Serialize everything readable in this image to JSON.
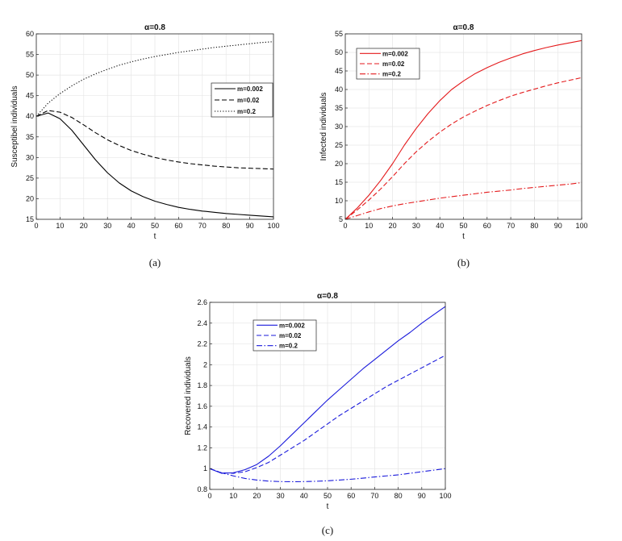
{
  "chart_data": [
    {
      "id": "a",
      "type": "line",
      "caption": "(a)",
      "title": "α=0.8",
      "xlabel": "t",
      "ylabel": "Susceptibel individuals",
      "xlim": [
        0,
        100
      ],
      "ylim": [
        15,
        60
      ],
      "xticks": [
        0,
        10,
        20,
        30,
        40,
        50,
        60,
        70,
        80,
        90,
        100
      ],
      "yticks": [
        15,
        20,
        25,
        30,
        35,
        40,
        45,
        50,
        55,
        60
      ],
      "grid": true,
      "legend_position": "center-right",
      "x": [
        0,
        5,
        10,
        15,
        20,
        25,
        30,
        35,
        40,
        45,
        50,
        55,
        60,
        65,
        70,
        75,
        80,
        85,
        90,
        95,
        100
      ],
      "series": [
        {
          "name": "m=0.002",
          "color": "#000000",
          "dash": "solid",
          "values": [
            40.0,
            40.8,
            39.4,
            36.6,
            33.0,
            29.4,
            26.3,
            23.8,
            21.9,
            20.5,
            19.4,
            18.6,
            17.9,
            17.4,
            17.0,
            16.7,
            16.4,
            16.2,
            16.0,
            15.8,
            15.6
          ]
        },
        {
          "name": "m=0.02",
          "color": "#000000",
          "dash": "dashed",
          "values": [
            40.0,
            41.4,
            41.0,
            39.7,
            37.9,
            36.0,
            34.3,
            32.9,
            31.7,
            30.8,
            30.0,
            29.4,
            28.9,
            28.5,
            28.2,
            27.9,
            27.7,
            27.5,
            27.4,
            27.3,
            27.2
          ]
        },
        {
          "name": "m=0.2",
          "color": "#000000",
          "dash": "dotted",
          "values": [
            40.0,
            43.2,
            45.5,
            47.4,
            49.0,
            50.3,
            51.4,
            52.4,
            53.2,
            53.9,
            54.5,
            55.0,
            55.5,
            55.9,
            56.3,
            56.7,
            57.0,
            57.3,
            57.6,
            57.9,
            58.1
          ]
        }
      ]
    },
    {
      "id": "b",
      "type": "line",
      "caption": "(b)",
      "title": "α=0.8",
      "xlabel": "t",
      "ylabel": "Infected individuals",
      "xlim": [
        0,
        100
      ],
      "ylim": [
        5,
        55
      ],
      "xticks": [
        0,
        10,
        20,
        30,
        40,
        50,
        60,
        70,
        80,
        90,
        100
      ],
      "yticks": [
        5,
        10,
        15,
        20,
        25,
        30,
        35,
        40,
        45,
        50,
        55
      ],
      "grid": true,
      "legend_position": "top-left",
      "x": [
        0,
        5,
        10,
        15,
        20,
        25,
        30,
        35,
        40,
        45,
        50,
        55,
        60,
        65,
        70,
        75,
        80,
        85,
        90,
        95,
        100
      ],
      "series": [
        {
          "name": "m=0.002",
          "color": "#e41a1c",
          "dash": "solid",
          "values": [
            5.0,
            8.0,
            11.5,
            15.5,
            20.0,
            25.0,
            29.5,
            33.5,
            37.0,
            40.0,
            42.3,
            44.3,
            45.9,
            47.3,
            48.5,
            49.6,
            50.5,
            51.3,
            52.0,
            52.6,
            53.2
          ]
        },
        {
          "name": "m=0.02",
          "color": "#e41a1c",
          "dash": "dashed",
          "values": [
            5.0,
            7.5,
            10.2,
            13.2,
            16.5,
            20.0,
            23.2,
            26.0,
            28.5,
            30.7,
            32.6,
            34.2,
            35.7,
            37.0,
            38.2,
            39.2,
            40.1,
            41.0,
            41.8,
            42.5,
            43.2
          ]
        },
        {
          "name": "m=0.2",
          "color": "#e41a1c",
          "dash": "dashdot",
          "values": [
            5.0,
            6.0,
            7.0,
            7.9,
            8.6,
            9.2,
            9.7,
            10.2,
            10.7,
            11.1,
            11.5,
            11.9,
            12.3,
            12.6,
            12.9,
            13.3,
            13.6,
            13.9,
            14.2,
            14.5,
            14.9
          ]
        }
      ]
    },
    {
      "id": "c",
      "type": "line",
      "caption": "(c)",
      "title": "α=0.8",
      "xlabel": "t",
      "ylabel": "Recovered individuals",
      "xlim": [
        0,
        100
      ],
      "ylim": [
        0.8,
        2.6
      ],
      "xticks": [
        0,
        10,
        20,
        30,
        40,
        50,
        60,
        70,
        80,
        90,
        100
      ],
      "yticks": [
        0.8,
        1,
        1.2,
        1.4,
        1.6,
        1.8,
        2,
        2.2,
        2.4,
        2.6
      ],
      "grid": true,
      "legend_position": "top-left",
      "x": [
        0,
        5,
        10,
        15,
        20,
        25,
        30,
        35,
        40,
        45,
        50,
        55,
        60,
        65,
        70,
        75,
        80,
        85,
        90,
        95,
        100
      ],
      "series": [
        {
          "name": "m=0.002",
          "color": "#1a1adb",
          "dash": "solid",
          "values": [
            1.0,
            0.955,
            0.96,
            0.99,
            1.04,
            1.12,
            1.22,
            1.33,
            1.44,
            1.55,
            1.66,
            1.76,
            1.86,
            1.96,
            2.05,
            2.14,
            2.23,
            2.31,
            2.4,
            2.48,
            2.56
          ]
        },
        {
          "name": "m=0.02",
          "color": "#1a1adb",
          "dash": "dashed",
          "values": [
            1.0,
            0.96,
            0.955,
            0.97,
            1.01,
            1.06,
            1.13,
            1.2,
            1.27,
            1.35,
            1.43,
            1.51,
            1.58,
            1.65,
            1.72,
            1.79,
            1.85,
            1.91,
            1.97,
            2.03,
            2.09
          ]
        },
        {
          "name": "m=0.2",
          "color": "#1a1adb",
          "dash": "dashdot",
          "values": [
            1.0,
            0.96,
            0.93,
            0.905,
            0.89,
            0.88,
            0.875,
            0.874,
            0.875,
            0.878,
            0.883,
            0.89,
            0.898,
            0.908,
            0.92,
            0.93,
            0.94,
            0.955,
            0.97,
            0.985,
            1.0
          ]
        }
      ]
    }
  ]
}
